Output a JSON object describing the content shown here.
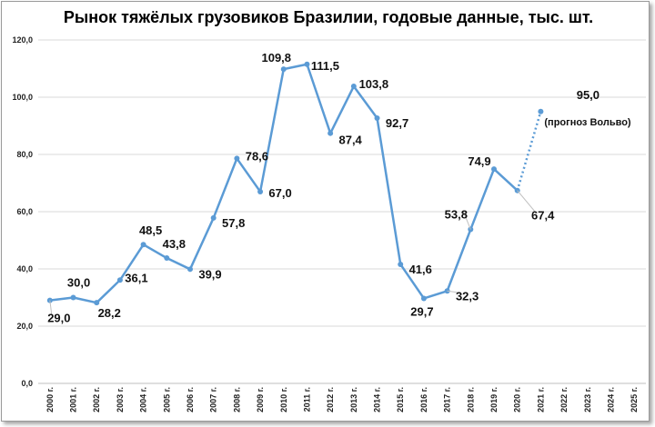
{
  "chart_data": {
    "type": "line",
    "title": "Рынок тяжёлых грузовиков Бразилии, годовые данные, тыс. шт.",
    "xlabel": "",
    "ylabel": "",
    "ylim": [
      0,
      120
    ],
    "yticks": [
      "0,0",
      "20,0",
      "40,0",
      "60,0",
      "80,0",
      "100,0",
      "120,0"
    ],
    "categories": [
      "2000 г.",
      "2001 г.",
      "2002 г.",
      "2003 г.",
      "2004 г.",
      "2005 г.",
      "2006 г.",
      "2007 г.",
      "2008 г.",
      "2009 г.",
      "2010 г.",
      "2011 г.",
      "2012 г.",
      "2013 г.",
      "2014 г.",
      "2015 г.",
      "2016 г.",
      "2017 г.",
      "2018 г.",
      "2019 г.",
      "2020 г.",
      "2021 г.",
      "2022 г.",
      "2023 г.",
      "2024 г.",
      "2025 г."
    ],
    "values": [
      29.0,
      30.0,
      28.2,
      36.1,
      48.5,
      43.8,
      39.9,
      57.8,
      78.6,
      67.0,
      109.8,
      111.5,
      87.4,
      103.8,
      92.7,
      41.6,
      29.7,
      32.3,
      53.8,
      74.9,
      67.4,
      95.0,
      null,
      null,
      null,
      null
    ],
    "value_labels": [
      "29,0",
      "30,0",
      "28,2",
      "36,1",
      "48,5",
      "43,8",
      "39,9",
      "57,8",
      "78,6",
      "67,0",
      "109,8",
      "111,5",
      "87,4",
      "103,8",
      "92,7",
      "41,6",
      "29,7",
      "32,3",
      "53,8",
      "74,9",
      "67,4",
      "95,0",
      "",
      "",
      "",
      ""
    ],
    "forecast_from_index": 20,
    "forecast_note": "(прогноз Вольво)",
    "grid": "horizontal",
    "line_color": "#5b9bd5",
    "grid_color": "#d9d9d9"
  }
}
